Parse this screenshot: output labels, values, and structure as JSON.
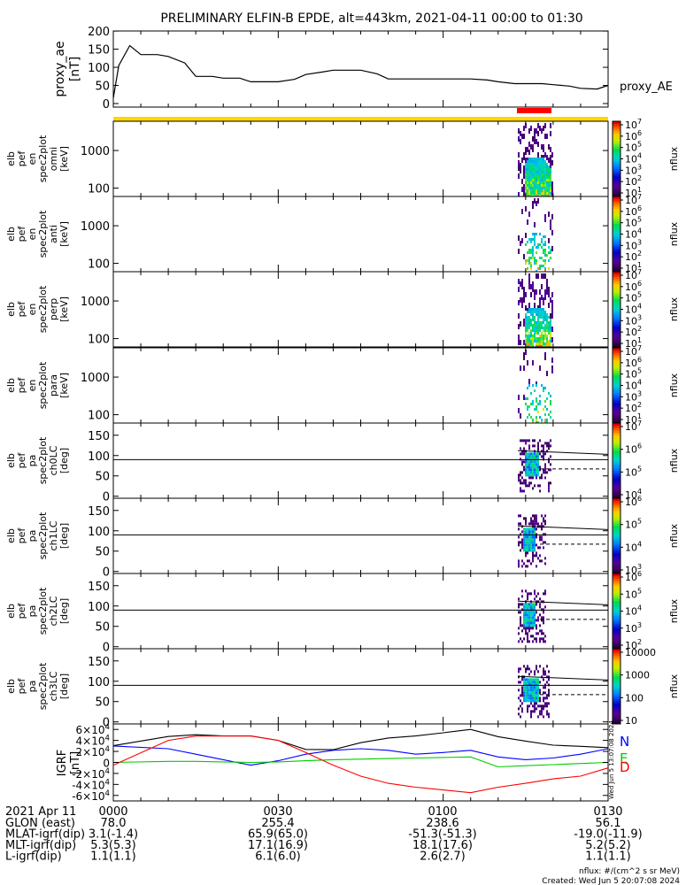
{
  "title": "PRELIMINARY ELFIN-B EPDE, alt=443km, 2021-04-11 00:00 to 01:30",
  "panels": [
    {
      "id": "proxy_ae",
      "ylabel": [
        "proxy_ae",
        "[nT]"
      ],
      "right_label": "proxy_AE",
      "yticks": [
        "0",
        "50",
        "100",
        "150",
        "200"
      ]
    },
    {
      "id": "en_omni",
      "ylabel": [
        "elb",
        "pef",
        "en",
        "spec2plot",
        "omni",
        "[keV]"
      ],
      "yticks": [
        "100",
        "1000"
      ],
      "cbar_ticks": [
        "10^1",
        "10^2",
        "10^3",
        "10^4",
        "10^5",
        "10^6",
        "10^7"
      ],
      "cbar_label": "nflux"
    },
    {
      "id": "en_anti",
      "ylabel": [
        "elb",
        "pef",
        "en",
        "spec2plot",
        "anti",
        "[keV]"
      ],
      "yticks": [
        "100",
        "1000"
      ],
      "cbar_ticks": [
        "10^1",
        "10^2",
        "10^3",
        "10^4",
        "10^5",
        "10^6",
        "10^7"
      ],
      "cbar_label": "nflux"
    },
    {
      "id": "en_perp",
      "ylabel": [
        "elb",
        "pef",
        "en",
        "spec2plot",
        "perp",
        "[keV]"
      ],
      "yticks": [
        "100",
        "1000"
      ],
      "cbar_ticks": [
        "10^1",
        "10^2",
        "10^3",
        "10^4",
        "10^5",
        "10^6",
        "10^7"
      ],
      "cbar_label": "nflux"
    },
    {
      "id": "en_para",
      "ylabel": [
        "elb",
        "pef",
        "en",
        "spec2plot",
        "para",
        "[keV]"
      ],
      "yticks": [
        "100",
        "1000"
      ],
      "cbar_ticks": [
        "10^1",
        "10^2",
        "10^3",
        "10^4",
        "10^5",
        "10^6",
        "10^7"
      ],
      "cbar_label": "nflux"
    },
    {
      "id": "pa_ch0",
      "ylabel": [
        "elb",
        "pef",
        "pa",
        "spec2plot",
        "ch0LC",
        "[deg]"
      ],
      "yticks": [
        "0",
        "50",
        "100",
        "150"
      ],
      "cbar_ticks": [
        "10^4",
        "10^5",
        "10^6",
        "10^7"
      ],
      "cbar_label": "nflux"
    },
    {
      "id": "pa_ch1",
      "ylabel": [
        "elb",
        "pef",
        "pa",
        "spec2plot",
        "ch1LC",
        "[deg]"
      ],
      "yticks": [
        "0",
        "50",
        "100",
        "150"
      ],
      "cbar_ticks": [
        "10^3",
        "10^4",
        "10^5",
        "10^6"
      ],
      "cbar_label": "nflux"
    },
    {
      "id": "pa_ch2",
      "ylabel": [
        "elb",
        "pef",
        "pa",
        "spec2plot",
        "ch2LC",
        "[deg]"
      ],
      "yticks": [
        "0",
        "50",
        "100",
        "150"
      ],
      "cbar_ticks": [
        "10^2",
        "10^3",
        "10^4",
        "10^5",
        "10^6"
      ],
      "cbar_label": "nflux"
    },
    {
      "id": "pa_ch3",
      "ylabel": [
        "elb",
        "pef",
        "pa",
        "spec2plot",
        "ch3LC",
        "[deg]"
      ],
      "yticks": [
        "0",
        "50",
        "100",
        "150"
      ],
      "cbar_ticks": [
        "10",
        "100",
        "1000",
        "10000"
      ],
      "cbar_label": "nflux"
    },
    {
      "id": "igrf",
      "ylabel": [
        "IGRF",
        "[nT]"
      ],
      "yticks": [
        "-6×10^4",
        "-4×10^4",
        "-2×10^4",
        "0",
        "2×10^4",
        "4×10^4",
        "6×10^4"
      ],
      "legend": [
        "N",
        "E",
        "D"
      ]
    }
  ],
  "colors": {
    "N": "#0000ff",
    "E": "#00cc00",
    "D": "#ff0000",
    "total": "#000000",
    "sci_bar": "#ffd700",
    "burst_bar": "#ff0000"
  },
  "vertical_stamp": "Wed Jun  5 13:07:08 2024",
  "ephemeris": {
    "times": [
      "0000",
      "0030",
      "0100",
      "0130"
    ],
    "date": "2021 Apr 11",
    "rows": [
      {
        "label": "GLON (east)",
        "values": [
          "78.0",
          "255.4",
          "238.6",
          "56.1"
        ]
      },
      {
        "label": "MLAT-igrf(dip)",
        "values": [
          "3.1(-1.4)",
          "65.9(65.0)",
          "-51.3(-51.3)",
          "-19.0(-11.9)"
        ]
      },
      {
        "label": "MLT-igrf(dip)",
        "values": [
          "5.3(5.3)",
          "17.1(16.9)",
          "18.1(17.6)",
          "5.2(5.2)"
        ]
      },
      {
        "label": "L-igrf(dip)",
        "values": [
          "1.1(1.1)",
          "6.1(6.0)",
          "2.6(2.7)",
          "1.1(1.1)"
        ]
      }
    ]
  },
  "footer": {
    "units": "nflux: #/(cm^2 s sr MeV)",
    "created": "Created: Wed Jun  5 20:07:08 2024"
  },
  "chart_data": [
    {
      "type": "line",
      "title": "proxy_ae",
      "ylabel": "proxy_ae [nT]",
      "ylim": [
        0,
        210
      ],
      "x": [
        "00:00",
        "00:01",
        "00:03",
        "00:05",
        "00:08",
        "00:10",
        "00:13",
        "00:15",
        "00:18",
        "00:20",
        "00:23",
        "00:25",
        "00:28",
        "00:30",
        "00:33",
        "00:35",
        "00:38",
        "00:40",
        "00:43",
        "00:45",
        "00:48",
        "00:50",
        "00:53",
        "00:55",
        "00:58",
        "01:00",
        "01:03",
        "01:05",
        "01:08",
        "01:10",
        "01:13",
        "01:15",
        "01:18",
        "01:20",
        "01:23",
        "01:25",
        "01:28",
        "01:30"
      ],
      "values": [
        15,
        105,
        160,
        135,
        135,
        130,
        112,
        75,
        75,
        70,
        70,
        60,
        60,
        60,
        67,
        80,
        87,
        92,
        92,
        92,
        82,
        68,
        68,
        68,
        68,
        68,
        68,
        68,
        65,
        60,
        55,
        55,
        55,
        52,
        48,
        42,
        40,
        50
      ]
    },
    {
      "type": "heatmap",
      "title": "en spec2plot omni",
      "ylabel": "[keV]",
      "yscale": "log",
      "ylim": [
        60,
        6000
      ]
    },
    {
      "type": "heatmap",
      "title": "en spec2plot anti",
      "ylabel": "[keV]",
      "yscale": "log",
      "ylim": [
        60,
        6000
      ]
    },
    {
      "type": "heatmap",
      "title": "en spec2plot perp",
      "ylabel": "[keV]",
      "yscale": "log",
      "ylim": [
        60,
        6000
      ]
    },
    {
      "type": "heatmap",
      "title": "en spec2plot para",
      "ylabel": "[keV]",
      "yscale": "log",
      "ylim": [
        60,
        6000
      ]
    },
    {
      "type": "heatmap",
      "title": "pa spec2plot ch0LC",
      "ylabel": "[deg]",
      "ylim": [
        -5,
        180
      ],
      "reference_line": 90
    },
    {
      "type": "heatmap",
      "title": "pa spec2plot ch1LC",
      "ylabel": "[deg]",
      "ylim": [
        -5,
        180
      ],
      "reference_line": 90
    },
    {
      "type": "heatmap",
      "title": "pa spec2plot ch2LC",
      "ylabel": "[deg]",
      "ylim": [
        -5,
        180
      ],
      "reference_line": 90
    },
    {
      "type": "heatmap",
      "title": "pa spec2plot ch3LC",
      "ylabel": "[deg]",
      "ylim": [
        -5,
        180
      ],
      "reference_line": 90
    },
    {
      "type": "line",
      "title": "IGRF",
      "ylabel": "IGRF [nT]",
      "ylim": [
        -70000,
        70000
      ],
      "x": [
        "00:00",
        "00:10",
        "00:15",
        "00:20",
        "00:25",
        "00:30",
        "00:35",
        "00:40",
        "00:45",
        "00:50",
        "00:55",
        "01:00",
        "01:05",
        "01:10",
        "01:15",
        "01:20",
        "01:25",
        "01:30"
      ],
      "series": [
        {
          "name": "N",
          "values": [
            30000,
            25000,
            15000,
            5000,
            -5000,
            3000,
            15000,
            22000,
            25000,
            22000,
            15000,
            18000,
            22000,
            10000,
            5000,
            8000,
            15000,
            25000
          ]
        },
        {
          "name": "E",
          "values": [
            0,
            2000,
            2000,
            1000,
            0,
            1000,
            3000,
            5000,
            6000,
            7000,
            8000,
            9000,
            10000,
            -8000,
            -6000,
            -4000,
            -2000,
            0
          ]
        },
        {
          "name": "D",
          "values": [
            -5000,
            40000,
            48000,
            48000,
            48000,
            40000,
            18000,
            -5000,
            -25000,
            -38000,
            -45000,
            -50000,
            -55000,
            -45000,
            -38000,
            -30000,
            -25000,
            -10000
          ]
        }
      ]
    }
  ]
}
